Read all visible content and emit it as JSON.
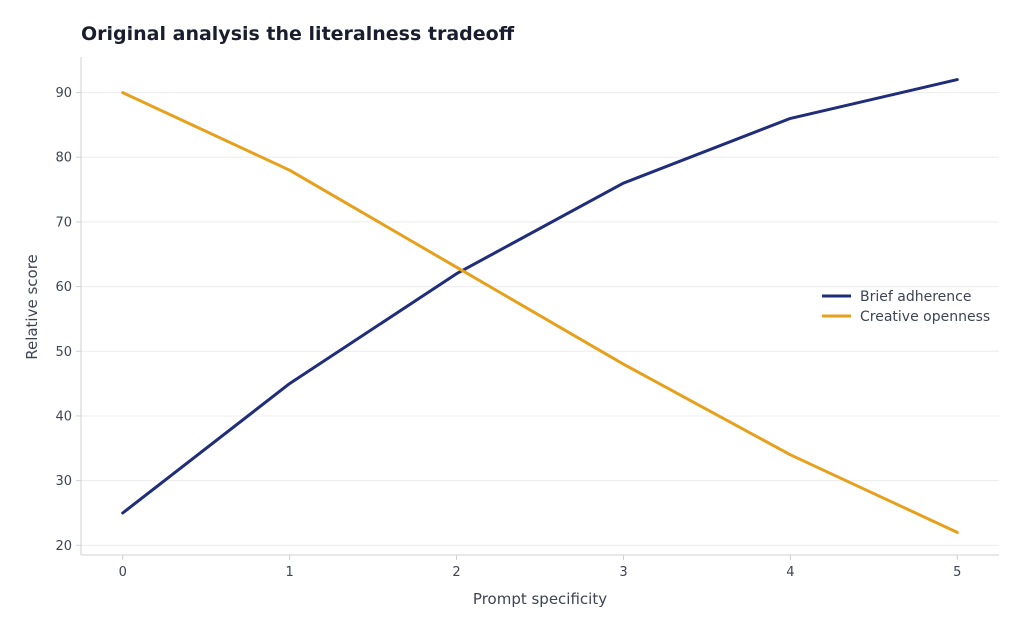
{
  "chart_data": {
    "type": "line",
    "title": "Original analysis the literalness tradeoff",
    "xlabel": "Prompt specificity",
    "ylabel": "Relative score",
    "x": [
      0,
      1,
      2,
      3,
      4,
      5
    ],
    "xticks": [
      0,
      1,
      2,
      3,
      4,
      5
    ],
    "yticks": [
      20,
      30,
      40,
      50,
      60,
      70,
      80,
      90
    ],
    "xlim": [
      -0.25,
      5.25
    ],
    "ylim": [
      18.5,
      95.5
    ],
    "grid": "horizontal",
    "legend_position": "right",
    "series": [
      {
        "name": "Brief adherence",
        "color": "#1f2d7a",
        "values": [
          25,
          45,
          62,
          76,
          86,
          92
        ]
      },
      {
        "name": "Creative openness",
        "color": "#e6a01c",
        "values": [
          90,
          78,
          63,
          48,
          34,
          22
        ]
      }
    ]
  }
}
